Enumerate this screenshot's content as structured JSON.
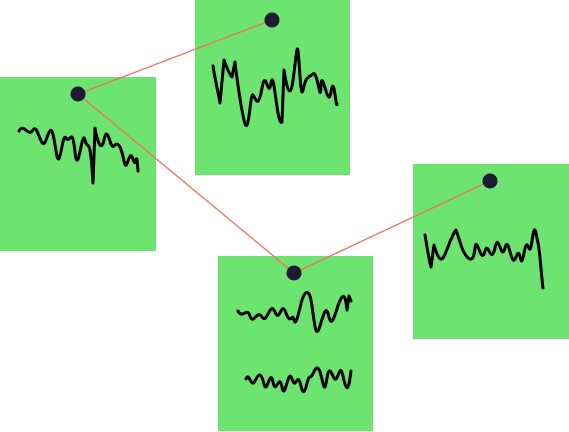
{
  "board": {
    "background": "#ffffff",
    "note_color": "#6ce46f",
    "pin_color": "#1f1a33",
    "string_color": "#ef6f5f",
    "ink_color": "#000000"
  },
  "notes": [
    {
      "id": "note-left",
      "scribble_lines": 1
    },
    {
      "id": "note-top",
      "scribble_lines": 1
    },
    {
      "id": "note-bottom",
      "scribble_lines": 2
    },
    {
      "id": "note-right",
      "scribble_lines": 1
    }
  ],
  "connections": [
    {
      "from": "note-left",
      "to": "note-top"
    },
    {
      "from": "note-left",
      "to": "note-bottom"
    },
    {
      "from": "note-bottom",
      "to": "note-right"
    }
  ]
}
